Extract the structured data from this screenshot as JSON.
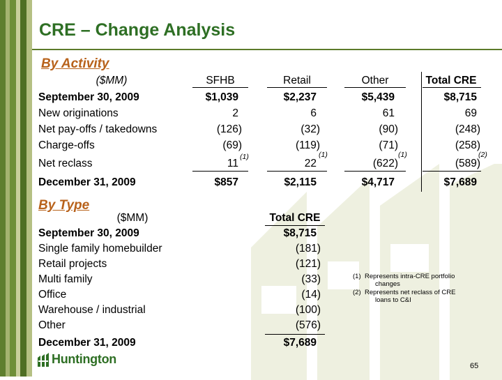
{
  "title": "CRE – Change Analysis",
  "colors": {
    "brand_green": "#2e6f24",
    "section_orange": "#b8621b",
    "watermark": "#eef0e0"
  },
  "by_activity": {
    "heading": "By Activity",
    "headers": [
      "($MM)",
      "SFHB",
      "Retail",
      "Other",
      "Total CRE"
    ],
    "rows": [
      {
        "label": "September 30, 2009",
        "values": [
          "$1,039",
          "$2,237",
          "$5,439",
          "$8,715"
        ]
      },
      {
        "label": "New originations",
        "values": [
          "2",
          "6",
          "61",
          "69"
        ]
      },
      {
        "label": "Net pay-offs / takedowns",
        "values": [
          "(126)",
          "(32)",
          "(90)",
          "(248)"
        ]
      },
      {
        "label": "Charge-offs",
        "values": [
          "(69)",
          "(119)",
          "(71)",
          "(258)"
        ]
      },
      {
        "label": "Net reclass",
        "values": [
          "11",
          "22",
          "(622)",
          "(589)"
        ],
        "notes": [
          "(1)",
          "(1)",
          "(1)",
          "(2)"
        ]
      },
      {
        "label": "December 31, 2009",
        "values": [
          "$857",
          "$2,115",
          "$4,717",
          "$7,689"
        ]
      }
    ]
  },
  "by_type": {
    "heading": "By Type",
    "headers": [
      "($MM)",
      "Total CRE"
    ],
    "rows": [
      {
        "label": "September 30, 2009",
        "value": "$8,715"
      },
      {
        "label": "Single family homebuilder",
        "value": "(181)"
      },
      {
        "label": "Retail projects",
        "value": "(121)"
      },
      {
        "label": "Multi family",
        "value": "(33)"
      },
      {
        "label": "Office",
        "value": "(14)"
      },
      {
        "label": "Warehouse / industrial",
        "value": "(100)"
      },
      {
        "label": "Other",
        "value": "(576)"
      },
      {
        "label": "December 31, 2009",
        "value": "$7,689"
      }
    ]
  },
  "footnotes": [
    {
      "num": "(1)",
      "line1": "Represents intra-CRE portfolio",
      "line2": "changes"
    },
    {
      "num": "(2)",
      "line1": "Represents net reclass of CRE",
      "line2": "loans to C&I"
    }
  ],
  "logo": {
    "icon": "huntington-logo-icon",
    "text": "Huntington"
  },
  "page_number": "65"
}
